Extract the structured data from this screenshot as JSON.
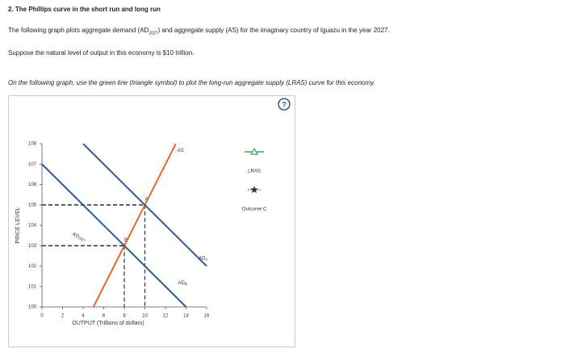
{
  "header": {
    "title": "2. The Phillips curve in the short run and long run",
    "intro": {
      "before": "The following graph plots aggregate demand (AD",
      "sub": "2027",
      "after": ") and aggregate supply (AS) for the imaginary country of Iguazu in the year 2027."
    },
    "note": "Suppose the natural level of output in this economy is $10 trillion.",
    "instruction": "On the following graph, use the green line (triangle symbol) to plot the long-run aggregate supply (LRAS) curve for this economy.",
    "help_icon": "?"
  },
  "chart_data": {
    "type": "line",
    "xlabel": "OUTPUT (Trillions of dollars)",
    "ylabel": "PRICE LEVEL",
    "xlim": [
      0,
      16
    ],
    "xticks": [
      0,
      2,
      4,
      6,
      8,
      10,
      12,
      14,
      16
    ],
    "ylim": [
      100,
      108
    ],
    "yticks": [
      100,
      101,
      102,
      103,
      104,
      105,
      106,
      107,
      108
    ],
    "series": [
      {
        "name": "AS",
        "color": "#e8692c",
        "x": [
          5,
          13
        ],
        "values": [
          100,
          108
        ]
      },
      {
        "name": "AD",
        "name_sub": "A",
        "color": "#2e5a8f",
        "x": [
          4,
          16
        ],
        "values": [
          108,
          102
        ]
      },
      {
        "name": "AD",
        "name_sub": "B",
        "color": "#2e5a8f",
        "x": [
          0,
          14
        ],
        "values": [
          107,
          100
        ]
      }
    ],
    "annotation": {
      "text": "AD",
      "sub": "2027"
    },
    "points": [
      {
        "label": "A",
        "x": 10,
        "y": 105
      },
      {
        "label": "B",
        "x": 8,
        "y": 103
      }
    ],
    "legend": [
      {
        "name": "LRAS",
        "color": "#3aa655",
        "marker": "triangle"
      },
      {
        "name": "Outcome C",
        "color": "#333333",
        "marker": "star"
      }
    ]
  }
}
